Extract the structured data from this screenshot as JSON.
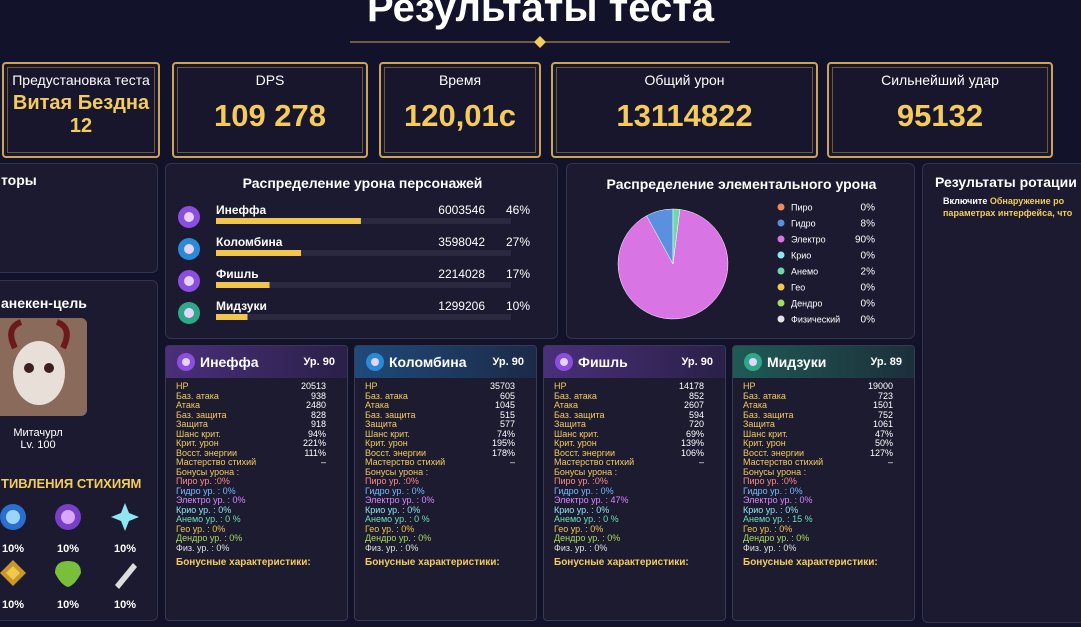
{
  "header": {
    "title": "Результаты теста"
  },
  "stats": [
    {
      "label": "Предустановка теста",
      "value": "Витая Бездна",
      "sub": "12"
    },
    {
      "label": "DPS",
      "value": "109 278"
    },
    {
      "label": "Время",
      "value": "120,01с"
    },
    {
      "label": "Общий урон",
      "value": "13114822"
    },
    {
      "label": "Сильнейший удар",
      "value": "95132"
    }
  ],
  "left": {
    "factors_title": "торы",
    "target_title": "анекен-цель",
    "enemy_name": "Митачурл",
    "enemy_level": "Lv. 100",
    "res_title": "ТИВЛЕНИЯ СТИХИЯМ",
    "resistances": [
      "10%",
      "10%",
      "10%",
      "10%",
      "10%",
      "10%"
    ]
  },
  "chart_data": [
    {
      "type": "bar",
      "title": "Распределение урона персонажей",
      "categories": [
        "Инеффа",
        "Коломбина",
        "Фишль",
        "Мидзуки"
      ],
      "damage": [
        6003546,
        3598042,
        2214028,
        1299206
      ],
      "values": [
        46,
        27,
        17,
        10
      ],
      "value_labels": [
        "46%",
        "27%",
        "17%",
        "10%"
      ],
      "xlim": [
        0,
        100
      ],
      "color": "#f2c64c"
    },
    {
      "type": "pie",
      "title": "Распределение элементального урона",
      "categories": [
        "Пиро",
        "Гидро",
        "Электро",
        "Крио",
        "Анемо",
        "Гео",
        "Дендро",
        "Физический"
      ],
      "colors": [
        "#f08a5d",
        "#5b8fe0",
        "#d874e4",
        "#8fe6f0",
        "#6fd8a8",
        "#f0c84a",
        "#a6dc5a",
        "#e4e4e4"
      ],
      "values": [
        0,
        8,
        90,
        0,
        2,
        0,
        0,
        0
      ],
      "value_labels": [
        "0%",
        "8%",
        "90%",
        "0%",
        "2%",
        "0%",
        "0%",
        "0%"
      ]
    }
  ],
  "rotation": {
    "title": "Результаты ротации",
    "text1": "Включите",
    "highlight": "Обнаружение ро",
    "text2": "параметрах интерфейса, что"
  },
  "characters": [
    {
      "name": "Инеффа",
      "level": "Ур. 90",
      "stats": [
        [
          "HP",
          "20513"
        ],
        [
          "Баз. атака",
          "938"
        ],
        [
          "Атака",
          "2480"
        ],
        [
          "Баз. защита",
          "828"
        ],
        [
          "Защита",
          "918"
        ],
        [
          "Шанс крит.",
          "94%"
        ],
        [
          "Крит. урон",
          "221%"
        ],
        [
          "Восст. энергии",
          "111%"
        ],
        [
          "Мастерство стихий",
          "–"
        ],
        [
          "Бонусы урона :"
        ]
      ],
      "elements": [
        "Пиро ур. :0%",
        "Гидро ур. : 0%",
        "Электро ур. : 0%",
        "Крио ур. : 0%",
        "Анемо ур. : 0 %",
        "Гео ур. : 0%",
        "Дендро ур. : 0%",
        "Физ. ур. : 0%"
      ],
      "bonus": "Бонусные характеристики:"
    },
    {
      "name": "Коломбина",
      "level": "Ур. 90",
      "stats": [
        [
          "HP",
          "35703"
        ],
        [
          "Баз. атака",
          "605"
        ],
        [
          "Атака",
          "1045"
        ],
        [
          "Баз. защита",
          "515"
        ],
        [
          "Защита",
          "577"
        ],
        [
          "Шанс крит.",
          "74%"
        ],
        [
          "Крит. урон",
          "195%"
        ],
        [
          "Восст. энергии",
          "178%"
        ],
        [
          "Мастерство стихий",
          "–"
        ],
        [
          "Бонусы урона :"
        ]
      ],
      "elements": [
        "Пиро ур. :0%",
        "Гидро ур. : 0%",
        "Электро ур. : 0%",
        "Крио ур. : 0%",
        "Анемо ур. : 0 %",
        "Гео ур. : 0%",
        "Дендро ур. : 0%",
        "Физ. ур. : 0%"
      ],
      "bonus": "Бонусные характеристики:"
    },
    {
      "name": "Фишль",
      "level": "Ур. 90",
      "stats": [
        [
          "HP",
          "14178"
        ],
        [
          "Баз. атака",
          "852"
        ],
        [
          "Атака",
          "2607"
        ],
        [
          "Баз. защита",
          "594"
        ],
        [
          "Защита",
          "720"
        ],
        [
          "Шанс крит.",
          "69%"
        ],
        [
          "Крит. урон",
          "139%"
        ],
        [
          "Восст. энергии",
          "106%"
        ],
        [
          "Мастерство стихий",
          "–"
        ],
        [
          "Бонусы урона :"
        ]
      ],
      "elements": [
        "Пиро ур. :0%",
        "Гидро ур. : 0%",
        "Электро ур. : 47%",
        "Крио ур. : 0%",
        "Анемо ур. : 0 %",
        "Гео ур. : 0%",
        "Дендро ур. : 0%",
        "Физ. ур. : 0%"
      ],
      "bonus": "Бонусные характеристики:"
    },
    {
      "name": "Мидзуки",
      "level": "Ур. 89",
      "stats": [
        [
          "HP",
          "19000"
        ],
        [
          "Баз. атака",
          "723"
        ],
        [
          "Атака",
          "1501"
        ],
        [
          "Баз. защита",
          "752"
        ],
        [
          "Защита",
          "1061"
        ],
        [
          "Шанс крит.",
          "47%"
        ],
        [
          "Крит. урон",
          "50%"
        ],
        [
          "Восст. энергии",
          "127%"
        ],
        [
          "Мастерство стихий",
          "–"
        ],
        [
          "Бонусы урона :"
        ]
      ],
      "elements": [
        "Пиро ур. :0%",
        "Гидро ур. : 0%",
        "Электро ур. : 0%",
        "Крио ур. : 0%",
        "Анемо ур. : 15 %",
        "Гео ур. : 0%",
        "Дендро ур. : 0%",
        "Физ. ур. : 0%"
      ],
      "bonus": "Бонусные характеристики:"
    }
  ]
}
